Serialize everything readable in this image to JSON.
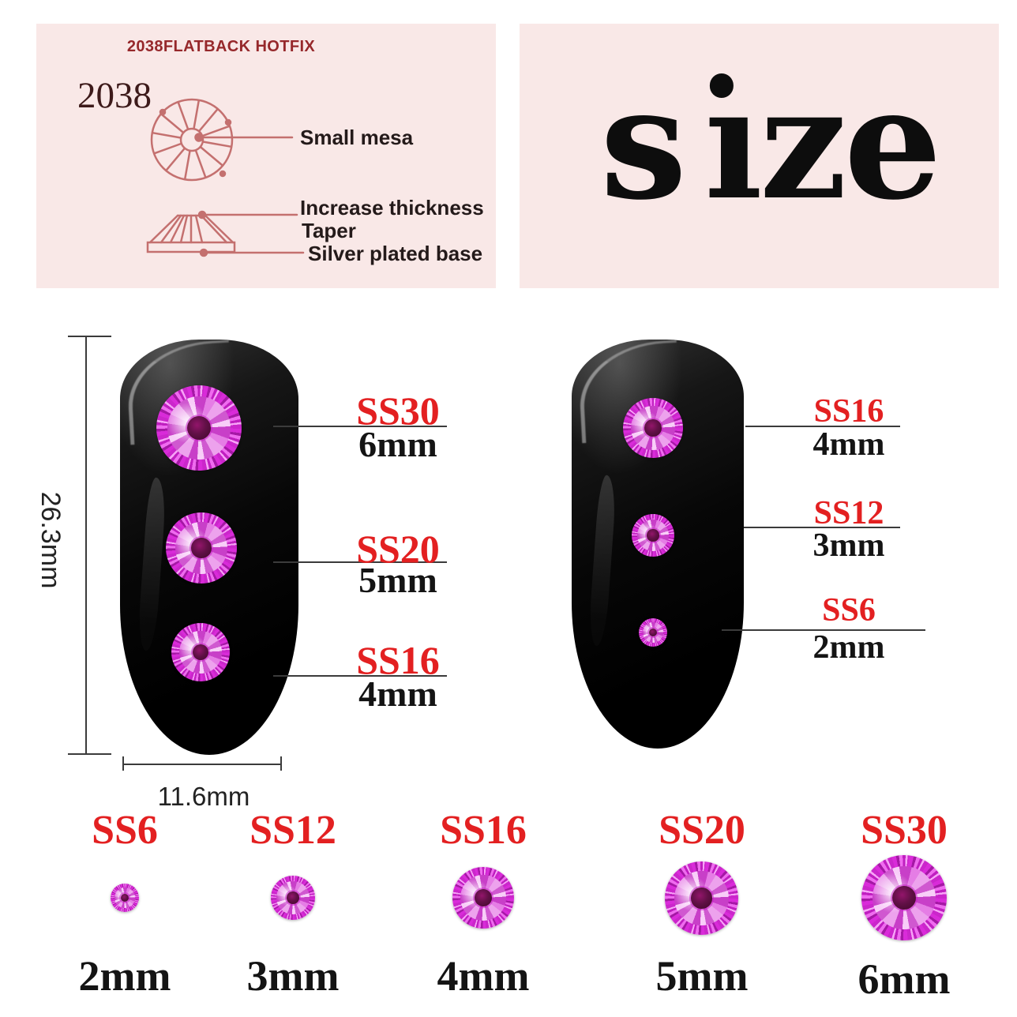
{
  "colors": {
    "panel_bg": "#f9e8e7",
    "diagram_stroke": "#c4706f",
    "header_red": "#96282b",
    "accent_red": "#e32021",
    "text_black": "#141414",
    "stone_magenta": "#d92bd9",
    "stone_core": "#5a0a3e",
    "nail_black": "#000000"
  },
  "spec_panel": {
    "header": "2038FLATBACK HOTFIX",
    "model": "2038",
    "top_view_label": "Small mesa",
    "side_view_labels": [
      "Increase thickness",
      "Taper",
      "Silver plated base"
    ]
  },
  "size_panel": {
    "title": "size"
  },
  "measurements": {
    "nail_height": "26.3mm",
    "nail_width": "11.6mm"
  },
  "left_nail_callouts": [
    {
      "ss": "SS30",
      "mm": "6mm"
    },
    {
      "ss": "SS20",
      "mm": "5mm"
    },
    {
      "ss": "SS16",
      "mm": "4mm"
    }
  ],
  "right_nail_callouts": [
    {
      "ss": "SS16",
      "mm": "4mm"
    },
    {
      "ss": "SS12",
      "mm": "3mm"
    },
    {
      "ss": "SS6",
      "mm": "2mm"
    }
  ],
  "size_chart": [
    {
      "ss": "SS6",
      "mm": "2mm"
    },
    {
      "ss": "SS12",
      "mm": "3mm"
    },
    {
      "ss": "SS16",
      "mm": "4mm"
    },
    {
      "ss": "SS20",
      "mm": "5mm"
    },
    {
      "ss": "SS30",
      "mm": "6mm"
    }
  ]
}
